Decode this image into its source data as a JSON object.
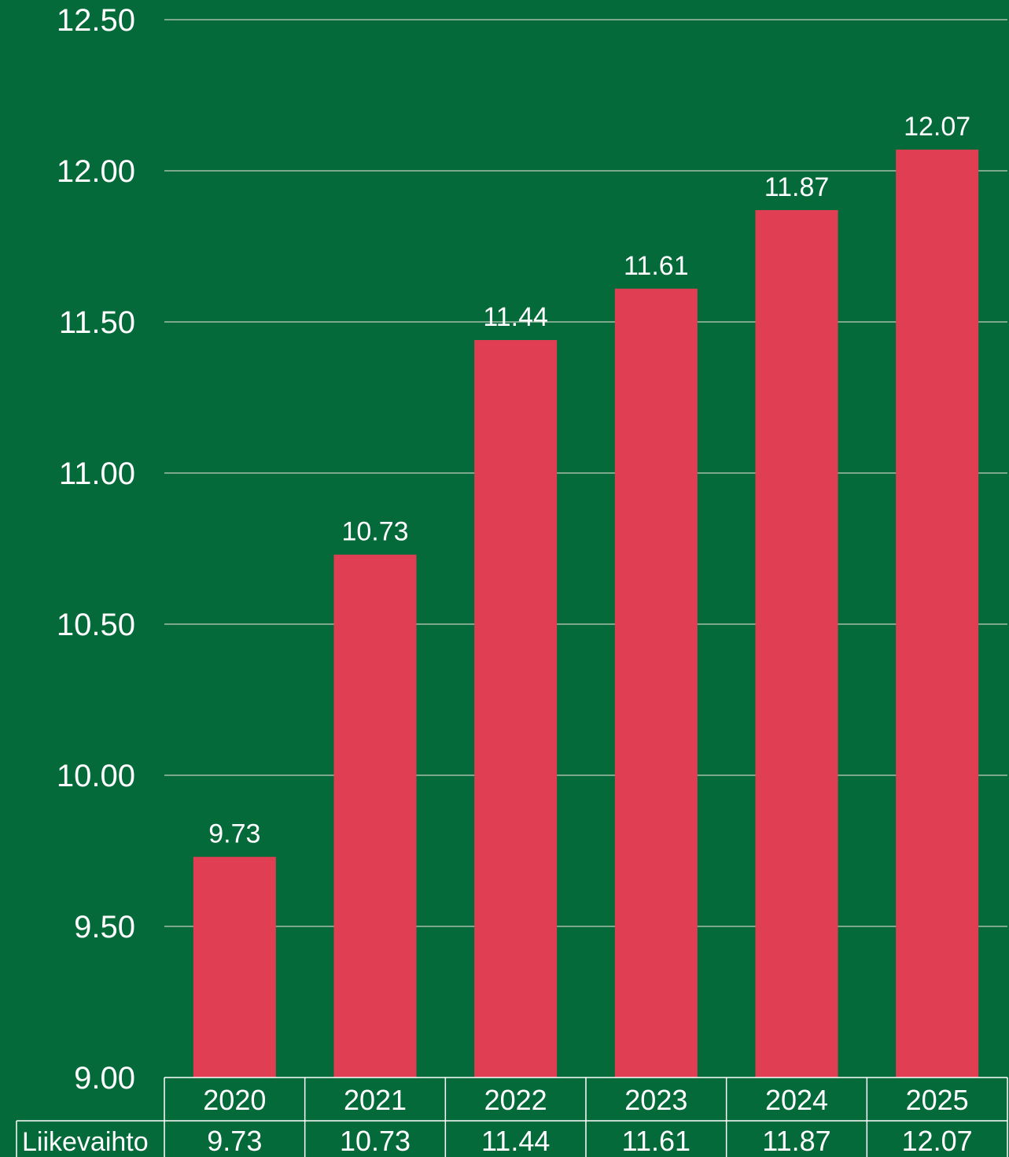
{
  "colors": {
    "background": "#046a3a",
    "bar": "#e03e52",
    "text": "#ffffff",
    "grid": "#a6bda9",
    "table_border": "#ffffff"
  },
  "chart_data": {
    "type": "bar",
    "categories": [
      "2020",
      "2021",
      "2022",
      "2023",
      "2024",
      "2025"
    ],
    "series": [
      {
        "name": "Liikevaihto",
        "values": [
          9.73,
          10.73,
          11.44,
          11.61,
          11.87,
          12.07
        ]
      }
    ],
    "value_labels": [
      "9.73",
      "10.73",
      "11.44",
      "11.61",
      "11.87",
      "12.07"
    ],
    "ylim": [
      9.0,
      12.5
    ],
    "yticks": [
      9.0,
      9.5,
      10.0,
      10.5,
      11.0,
      11.5,
      12.0,
      12.5
    ],
    "ytick_labels": [
      "9.00",
      "9.50",
      "10.00",
      "10.50",
      "11.00",
      "11.50",
      "12.00",
      "12.50"
    ],
    "grid": true,
    "legend": "data-table",
    "data_table": {
      "row_label": "Liikevaihto",
      "values": [
        "9.73",
        "10.73",
        "11.44",
        "11.61",
        "11.87",
        "12.07"
      ]
    }
  }
}
